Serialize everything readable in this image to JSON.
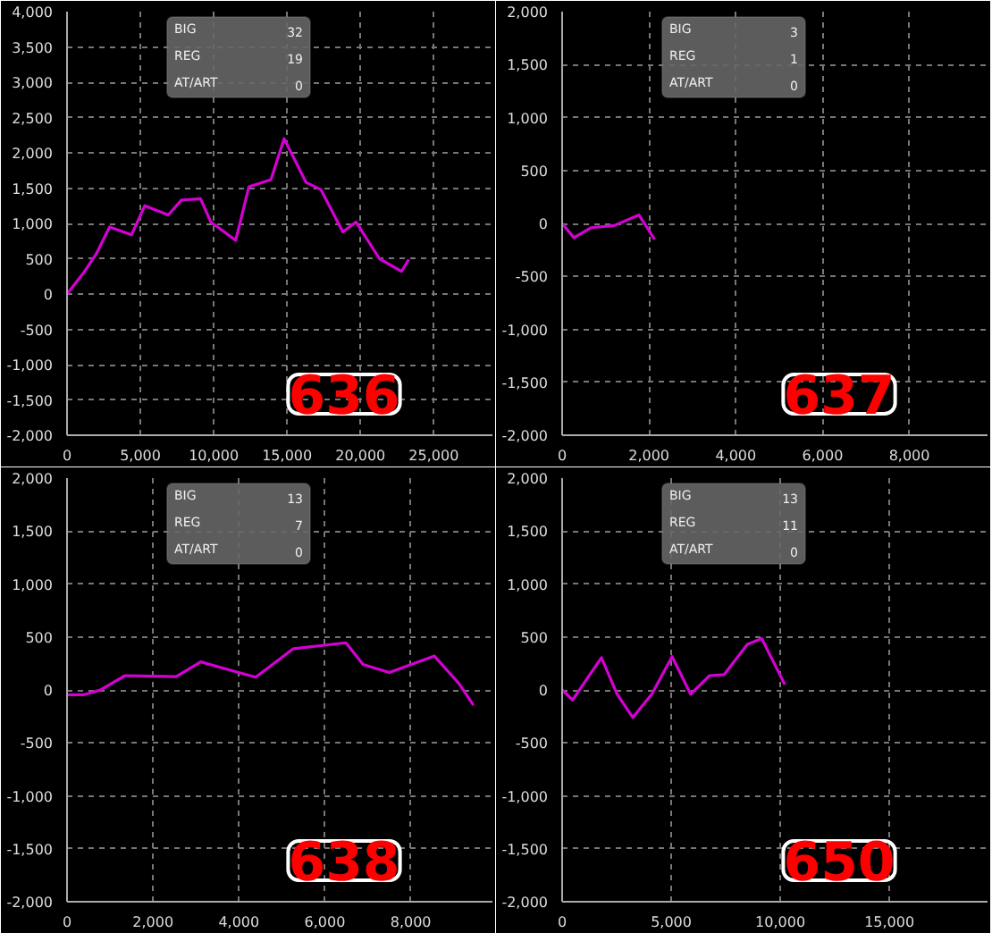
{
  "chart_data": [
    {
      "type": "line",
      "title": "636",
      "annotations": [
        "BIG",
        "32",
        "REG",
        "19",
        "AT/ART",
        "0"
      ],
      "grid": true,
      "marker": "none",
      "line_style": "solid",
      "x": [
        0,
        1200,
        2000,
        2900,
        4400,
        5300,
        6900,
        7800,
        9100,
        9800,
        11500,
        12400,
        13900,
        14800,
        16300,
        17300,
        18800,
        19700,
        21300,
        22800,
        23300
      ],
      "series": [
        {
          "color": "#d400d4",
          "values": [
            0,
            320,
            570,
            950,
            840,
            1250,
            1120,
            1330,
            1350,
            1020,
            760,
            1520,
            1620,
            2200,
            1580,
            1480,
            880,
            1020,
            500,
            320,
            490
          ]
        }
      ],
      "xlim": [
        0,
        29000
      ],
      "ylim": [
        -2000,
        4000
      ],
      "xticks": [
        0,
        {
          "value": 5000,
          "label": "5,000"
        },
        {
          "value": 10000,
          "label": "10,000"
        },
        {
          "value": 15000,
          "label": "15,000"
        },
        {
          "value": 20000,
          "label": "20,000"
        },
        {
          "value": 25000,
          "label": "25,000"
        }
      ],
      "yticks": [
        {
          "value": -2000,
          "label": "-2,000"
        },
        {
          "value": -1500,
          "label": "-1,500"
        },
        {
          "value": -1000,
          "label": "-1,000"
        },
        -500,
        0,
        500,
        {
          "value": 1000,
          "label": "1,000"
        },
        {
          "value": 1500,
          "label": "1,500"
        },
        {
          "value": 2000,
          "label": "2,000"
        },
        {
          "value": 2500,
          "label": "2,500"
        },
        {
          "value": 3000,
          "label": "3,000"
        },
        {
          "value": 3500,
          "label": "3,500"
        },
        {
          "value": 4000,
          "label": "4,000"
        }
      ]
    },
    {
      "type": "line",
      "title": "637",
      "annotations": [
        "BIG",
        "3",
        "REG",
        "1",
        "AT/ART",
        "0"
      ],
      "grid": true,
      "marker": "none",
      "line_style": "solid",
      "x": [
        0,
        270,
        670,
        1200,
        1770,
        2130
      ],
      "series": [
        {
          "color": "#d400d4",
          "values": [
            0,
            -135,
            -40,
            -20,
            80,
            -150
          ]
        }
      ],
      "xlim": [
        0,
        9800
      ],
      "ylim": [
        -2000,
        2000
      ],
      "xticks": [
        0,
        {
          "value": 2000,
          "label": "2,000"
        },
        {
          "value": 4000,
          "label": "4,000"
        },
        {
          "value": 6000,
          "label": "6,000"
        },
        {
          "value": 8000,
          "label": "8,000"
        }
      ],
      "yticks": [
        {
          "value": -2000,
          "label": "-2,000"
        },
        {
          "value": -1500,
          "label": "-1,500"
        },
        {
          "value": -1000,
          "label": "-1,000"
        },
        -500,
        0,
        500,
        {
          "value": 1000,
          "label": "1,000"
        },
        {
          "value": 1500,
          "label": "1,500"
        },
        {
          "value": 2000,
          "label": "2,000"
        }
      ]
    },
    {
      "type": "line",
      "title": "638",
      "annotations": [
        "BIG",
        "13",
        "REG",
        "7",
        "AT/ART",
        "0"
      ],
      "grid": true,
      "marker": "none",
      "line_style": "solid",
      "x": [
        0,
        400,
        780,
        1350,
        2540,
        3110,
        4390,
        5270,
        6490,
        6890,
        7500,
        8550,
        9120,
        9460
      ],
      "series": [
        {
          "color": "#d400d4",
          "values": [
            -45,
            -45,
            0,
            135,
            125,
            265,
            120,
            390,
            445,
            240,
            165,
            320,
            60,
            -145
          ]
        }
      ],
      "xlim": [
        0,
        9900
      ],
      "ylim": [
        -2000,
        2000
      ],
      "xticks": [
        0,
        {
          "value": 2000,
          "label": "2,000"
        },
        {
          "value": 4000,
          "label": "4,000"
        },
        {
          "value": 6000,
          "label": "6,000"
        },
        {
          "value": 8000,
          "label": "8,000"
        }
      ],
      "yticks": [
        {
          "value": -2000,
          "label": "-2,000"
        },
        {
          "value": -1500,
          "label": "-1,500"
        },
        {
          "value": -1000,
          "label": "-1,000"
        },
        -500,
        0,
        500,
        {
          "value": 1000,
          "label": "1,000"
        },
        {
          "value": 1500,
          "label": "1,500"
        },
        {
          "value": 2000,
          "label": "2,000"
        }
      ]
    },
    {
      "type": "line",
      "title": "650",
      "annotations": [
        "BIG",
        "13",
        "REG",
        "11",
        "AT/ART",
        "0"
      ],
      "grid": true,
      "marker": "none",
      "line_style": "solid",
      "x": [
        0,
        480,
        1800,
        2520,
        3240,
        4110,
        5040,
        5890,
        6760,
        7430,
        8490,
        9150,
        10210
      ],
      "series": [
        {
          "color": "#d400d4",
          "values": [
            0,
            -95,
            305,
            -40,
            -260,
            -40,
            315,
            -40,
            135,
            145,
            430,
            485,
            50
          ]
        }
      ],
      "xlim": [
        0,
        19500
      ],
      "ylim": [
        -2000,
        2000
      ],
      "xticks": [
        0,
        {
          "value": 5000,
          "label": "5,000"
        },
        {
          "value": 10000,
          "label": "10,000"
        },
        {
          "value": 15000,
          "label": "15,000"
        }
      ],
      "yticks": [
        {
          "value": -2000,
          "label": "-2,000"
        },
        {
          "value": -1500,
          "label": "-1,500"
        },
        {
          "value": -1000,
          "label": "-1,000"
        },
        -500,
        0,
        500,
        {
          "value": 1000,
          "label": "1,000"
        },
        {
          "value": 1500,
          "label": "1,500"
        },
        {
          "value": 2000,
          "label": "2,000"
        }
      ]
    }
  ]
}
